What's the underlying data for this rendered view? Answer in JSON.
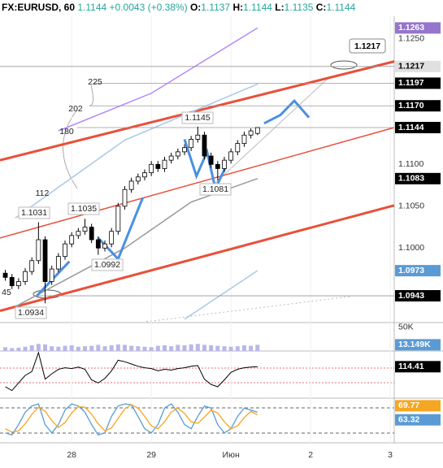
{
  "header": {
    "symbol": "FX:EURUSD, 60",
    "last": "1.1144",
    "change": "+0.0043 (+0.38%)",
    "ohlc": [
      {
        "key": "O:",
        "value": "1.1137"
      },
      {
        "key": "H:",
        "value": "1.1144"
      },
      {
        "key": "L:",
        "value": "1.1135"
      },
      {
        "key": "C:",
        "value": "1.1144"
      }
    ]
  },
  "chart_data": {
    "type": "candlestick",
    "x": [
      4,
      6,
      8,
      10,
      12,
      14,
      16,
      18,
      20,
      22,
      24,
      26,
      28,
      30,
      32,
      34,
      36,
      38,
      40,
      42,
      44,
      46,
      48,
      50,
      52,
      54,
      56,
      58,
      60,
      62,
      64,
      66,
      68,
      70,
      72,
      74,
      76,
      78,
      80
    ],
    "open": [
      1.097,
      1.0965,
      1.0955,
      1.096,
      1.0972,
      1.0985,
      1.101,
      1.096,
      1.0975,
      1.099,
      1.1005,
      1.1015,
      1.102,
      1.1025,
      1.101,
      1.1,
      1.1005,
      1.102,
      1.105,
      1.107,
      1.108,
      1.1085,
      1.109,
      1.11,
      1.1095,
      1.1105,
      1.111,
      1.1115,
      1.112,
      1.113,
      1.1135,
      1.111,
      1.11,
      1.1095,
      1.1105,
      1.1115,
      1.1125,
      1.1135,
      1.1137
    ],
    "high": [
      1.0974,
      1.0969,
      1.0964,
      1.0976,
      1.0989,
      1.1031,
      1.1014,
      1.0979,
      1.0994,
      1.1009,
      1.1019,
      1.1024,
      1.1035,
      1.1029,
      1.1014,
      1.1009,
      1.1024,
      1.1054,
      1.1074,
      1.1084,
      1.1089,
      1.1094,
      1.1104,
      1.1104,
      1.1109,
      1.1114,
      1.1119,
      1.1124,
      1.1134,
      1.1145,
      1.1139,
      1.1114,
      1.1104,
      1.1109,
      1.1119,
      1.1129,
      1.1139,
      1.1143,
      1.1144
    ],
    "low": [
      1.0961,
      1.0951,
      1.0951,
      1.0956,
      1.0968,
      1.0981,
      1.0934,
      1.0956,
      1.0971,
      1.0986,
      1.1001,
      1.1011,
      1.1016,
      1.1006,
      1.0992,
      1.0996,
      1.1001,
      1.1016,
      1.1046,
      1.1066,
      1.1076,
      1.1081,
      1.1086,
      1.1091,
      1.1091,
      1.1101,
      1.1106,
      1.1111,
      1.1116,
      1.1126,
      1.1106,
      1.1096,
      1.1081,
      1.1091,
      1.1101,
      1.1111,
      1.1121,
      1.1131,
      1.1135
    ],
    "close": [
      1.0965,
      1.0955,
      1.096,
      1.0972,
      1.0985,
      1.101,
      1.096,
      1.0975,
      1.099,
      1.1005,
      1.1015,
      1.102,
      1.1025,
      1.101,
      1.1,
      1.1005,
      1.102,
      1.105,
      1.107,
      1.108,
      1.1085,
      1.109,
      1.11,
      1.1095,
      1.1105,
      1.111,
      1.1115,
      1.112,
      1.113,
      1.1135,
      1.111,
      1.11,
      1.1095,
      1.1105,
      1.1115,
      1.1125,
      1.1135,
      1.114,
      1.1144
    ],
    "up_color": "#ffffff",
    "down_color": "#000000",
    "xlim": [
      2.4,
      121.2
    ],
    "xticks": [
      {
        "value": 24,
        "label": "28"
      },
      {
        "value": 48,
        "label": "29"
      },
      {
        "value": 72,
        "label": "Июн"
      },
      {
        "value": 96,
        "label": "2"
      },
      {
        "value": 120,
        "label": "3"
      }
    ],
    "ylim": [
      1.0911,
      1.1277
    ],
    "yticks": [
      {
        "value": 1.125,
        "label": "1.1250"
      },
      {
        "value": 1.11,
        "label": "1.1100"
      },
      {
        "value": 1.105,
        "label": "1.1050"
      },
      {
        "value": 1.1,
        "label": "1.1000"
      }
    ],
    "price_badges": [
      {
        "value": 1.1263,
        "color": "#9575cd"
      },
      {
        "value": 1.1217,
        "color": "#e0e0e0"
      },
      {
        "value": 1.1197,
        "color": "#000000"
      },
      {
        "value": 1.117,
        "label": "1.1170",
        "color": "#000000"
      },
      {
        "value": 1.1144,
        "color": "#000000"
      },
      {
        "value": 1.1083,
        "color": "#000000"
      },
      {
        "value": 1.0973,
        "color": "#5b9bd5"
      },
      {
        "value": 1.0943,
        "color": "#000000"
      }
    ],
    "overlays": [
      {
        "color": "#e8503a",
        "x": [
          2.4,
          121.2
        ],
        "values": [
          1.1105,
          1.1223
        ]
      },
      {
        "color": "#e8503a",
        "x": [
          2.4,
          121.2
        ],
        "values": [
          1.1012,
          1.1144
        ]
      },
      {
        "color": "#e8503a",
        "x": [
          2.4,
          121.2
        ],
        "values": [
          1.0925,
          1.1051
        ]
      },
      {
        "color": "#a9c8e8",
        "x": [
          7,
          40,
          80
        ],
        "values": [
          1.1036,
          1.1129,
          1.1196
        ]
      },
      {
        "color": "#999999",
        "x": [
          7,
          40,
          60,
          80
        ],
        "values": [
          1.093,
          1.1,
          1.1055,
          1.1083
        ]
      },
      {
        "color": "#b388ff",
        "x": [
          20,
          48,
          80
        ],
        "values": [
          1.114,
          1.1185,
          1.1263
        ]
      },
      {
        "color": "#a9c8e8",
        "x": [
          58,
          80
        ],
        "values": [
          1.0915,
          1.0973
        ]
      },
      {
        "color": "#4a90e2",
        "x": [
          82,
          86.9,
          91.1,
          95.5
        ],
        "values": [
          1.1149,
          1.1159,
          1.1176,
          1.1156
        ]
      },
      {
        "color": "#4a90e2",
        "x": [
          13.5,
          23.3
        ],
        "values": [
          1.0943,
          1.0984
        ]
      },
      {
        "color": "#4a90e2",
        "x": [
          32,
          38,
          45.4
        ],
        "values": [
          1.1012,
          1.0987,
          1.106
        ]
      },
      {
        "color": "#4a90e2",
        "x": [
          58,
          61.6,
          64.8,
          67.3,
          70.3
        ],
        "values": [
          1.113,
          1.1086,
          1.1115,
          1.1071,
          1.1096
        ]
      }
    ],
    "annotations": [
      "1.1145",
      "1.1081",
      "1.1035",
      "1.1031",
      "1.0992",
      "1.0934",
      "225",
      "202",
      "180",
      "112",
      "45"
    ],
    "volume": {
      "color": "#b8b8e8",
      "ylim": [
        0,
        60000
      ],
      "yticks": [
        {
          "value": 50000,
          "label": "50K"
        }
      ],
      "values": [
        8000,
        6000,
        7000,
        9000,
        12000,
        15000,
        14000,
        10000,
        9000,
        11000,
        12000,
        9000,
        10000,
        11000,
        13000,
        10000,
        12000,
        14000,
        13000,
        11000,
        10000,
        9000,
        8000,
        11000,
        12000,
        10000,
        13000,
        12000,
        14000,
        15000,
        13000,
        12000,
        11000,
        10000,
        9000,
        10000,
        12000,
        11000,
        13149
      ],
      "badge": {
        "value": 13149,
        "label": "13.149K",
        "color": "#5b9bd5"
      }
    },
    "cci": {
      "color": "#000000",
      "ylim": [
        -300,
        300
      ],
      "values": [
        -150,
        -200,
        -100,
        0,
        50,
        300,
        -50,
        20,
        80,
        100,
        90,
        110,
        80,
        -60,
        -100,
        -40,
        60,
        200,
        180,
        150,
        120,
        100,
        90,
        60,
        80,
        70,
        90,
        100,
        120,
        130,
        -50,
        -120,
        -150,
        -60,
        40,
        80,
        100,
        110,
        114.41
      ],
      "badge": {
        "value": 114.41,
        "color": "#000000"
      }
    },
    "stoch": {
      "ylim": [
        0,
        100
      ],
      "series": [
        {
          "color": "#5b9bd5",
          "values": [
            20,
            15,
            40,
            70,
            85,
            90,
            40,
            20,
            40,
            75,
            90,
            85,
            70,
            40,
            15,
            20,
            60,
            85,
            90,
            88,
            60,
            30,
            20,
            40,
            80,
            90,
            70,
            40,
            30,
            60,
            85,
            80,
            40,
            20,
            30,
            60,
            80,
            75,
            69.77
          ]
        },
        {
          "color": "#f5a623",
          "values": [
            30,
            22,
            25,
            42,
            65,
            82,
            72,
            50,
            33,
            45,
            68,
            83,
            82,
            65,
            42,
            25,
            32,
            55,
            78,
            88,
            80,
            60,
            37,
            30,
            47,
            70,
            80,
            67,
            47,
            43,
            58,
            75,
            68,
            47,
            30,
            37,
            57,
            72,
            63.32
          ]
        }
      ],
      "badges": [
        {
          "value": 69.77,
          "color": "#f5a623"
        },
        {
          "value": 63.32,
          "color": "#5b9bd5"
        }
      ]
    }
  }
}
